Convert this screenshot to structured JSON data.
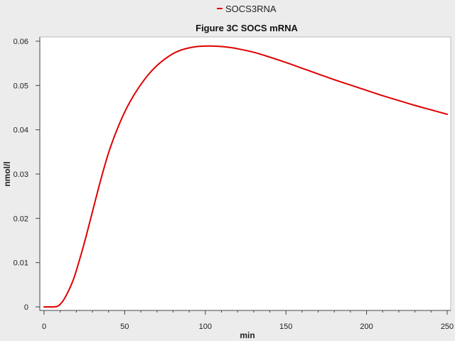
{
  "chart_data": {
    "type": "line",
    "title": "Figure 3C SOCS mRNA",
    "xlabel": "min",
    "ylabel": "nmol/l",
    "xlim": [
      0,
      250
    ],
    "ylim": [
      0,
      0.06
    ],
    "x_ticks": [
      0,
      50,
      100,
      150,
      200,
      250
    ],
    "y_ticks": [
      0,
      0.01,
      0.02,
      0.03,
      0.04,
      0.05,
      0.06
    ],
    "x_tick_labels": [
      "0",
      "50",
      "100",
      "150",
      "200",
      "250"
    ],
    "y_tick_labels": [
      "0",
      "0.01",
      "0.02",
      "0.03",
      "0.04",
      "0.05",
      "0.06"
    ],
    "grid": false,
    "legend_position": "top-center",
    "series": [
      {
        "name": "SOCS3RNA",
        "color": "#e00000",
        "x": [
          0,
          5,
          8,
          10,
          12,
          15,
          18,
          20,
          25,
          30,
          35,
          40,
          45,
          50,
          55,
          60,
          65,
          70,
          75,
          80,
          85,
          90,
          95,
          100,
          105,
          110,
          115,
          120,
          130,
          140,
          150,
          160,
          170,
          180,
          190,
          200,
          210,
          220,
          230,
          240,
          250
        ],
        "y": [
          0,
          0,
          0.0001,
          0.0006,
          0.0015,
          0.0035,
          0.006,
          0.0082,
          0.0145,
          0.0215,
          0.0285,
          0.0348,
          0.0398,
          0.044,
          0.0474,
          0.0502,
          0.0526,
          0.0545,
          0.056,
          0.0572,
          0.058,
          0.0585,
          0.0588,
          0.0589,
          0.0589,
          0.0588,
          0.0586,
          0.0583,
          0.0575,
          0.0564,
          0.0552,
          0.0539,
          0.0526,
          0.0513,
          0.0501,
          0.0489,
          0.0477,
          0.0466,
          0.0455,
          0.0445,
          0.0435
        ]
      }
    ]
  }
}
